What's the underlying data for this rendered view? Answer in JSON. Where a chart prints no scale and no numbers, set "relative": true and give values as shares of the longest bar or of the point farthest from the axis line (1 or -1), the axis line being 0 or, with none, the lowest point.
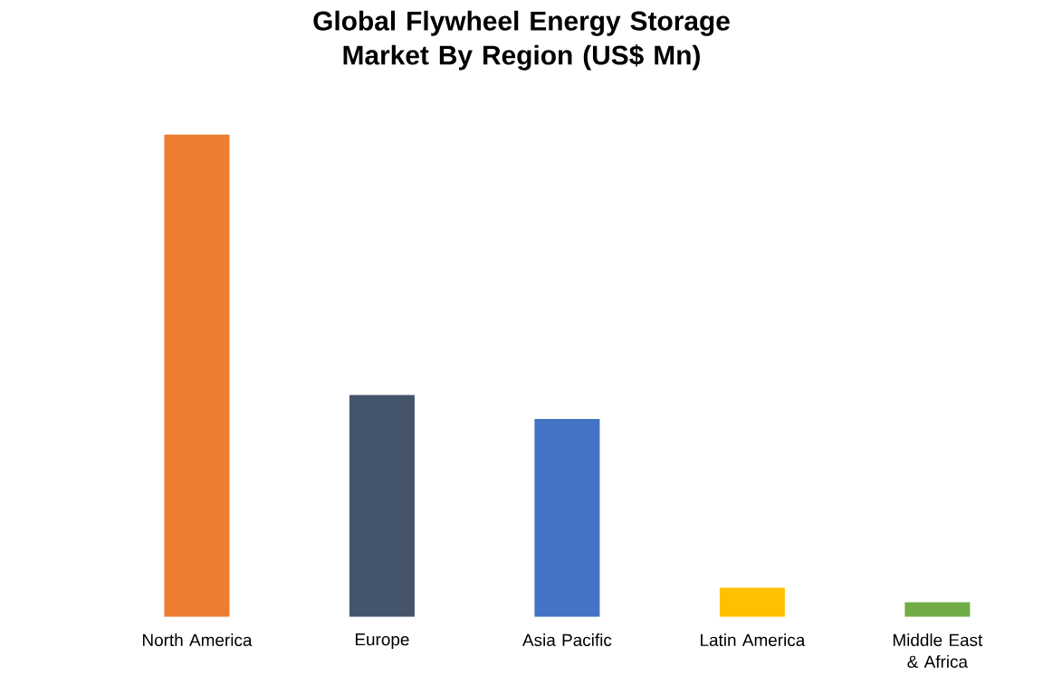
{
  "chart_data": {
    "type": "bar",
    "title": "Global Flywheel Energy Storage Market By Region (US$ Mn)",
    "categories": [
      "North America",
      "Europe",
      "Asia Pacific",
      "Latin America",
      "Middle East & Africa"
    ],
    "values": [
      1,
      0.46,
      0.41,
      0.06,
      0.03
    ],
    "colors": [
      "#ed7d31",
      "#44546a",
      "#4472c4",
      "#ffc000",
      "#70ad47"
    ],
    "relative": true
  }
}
